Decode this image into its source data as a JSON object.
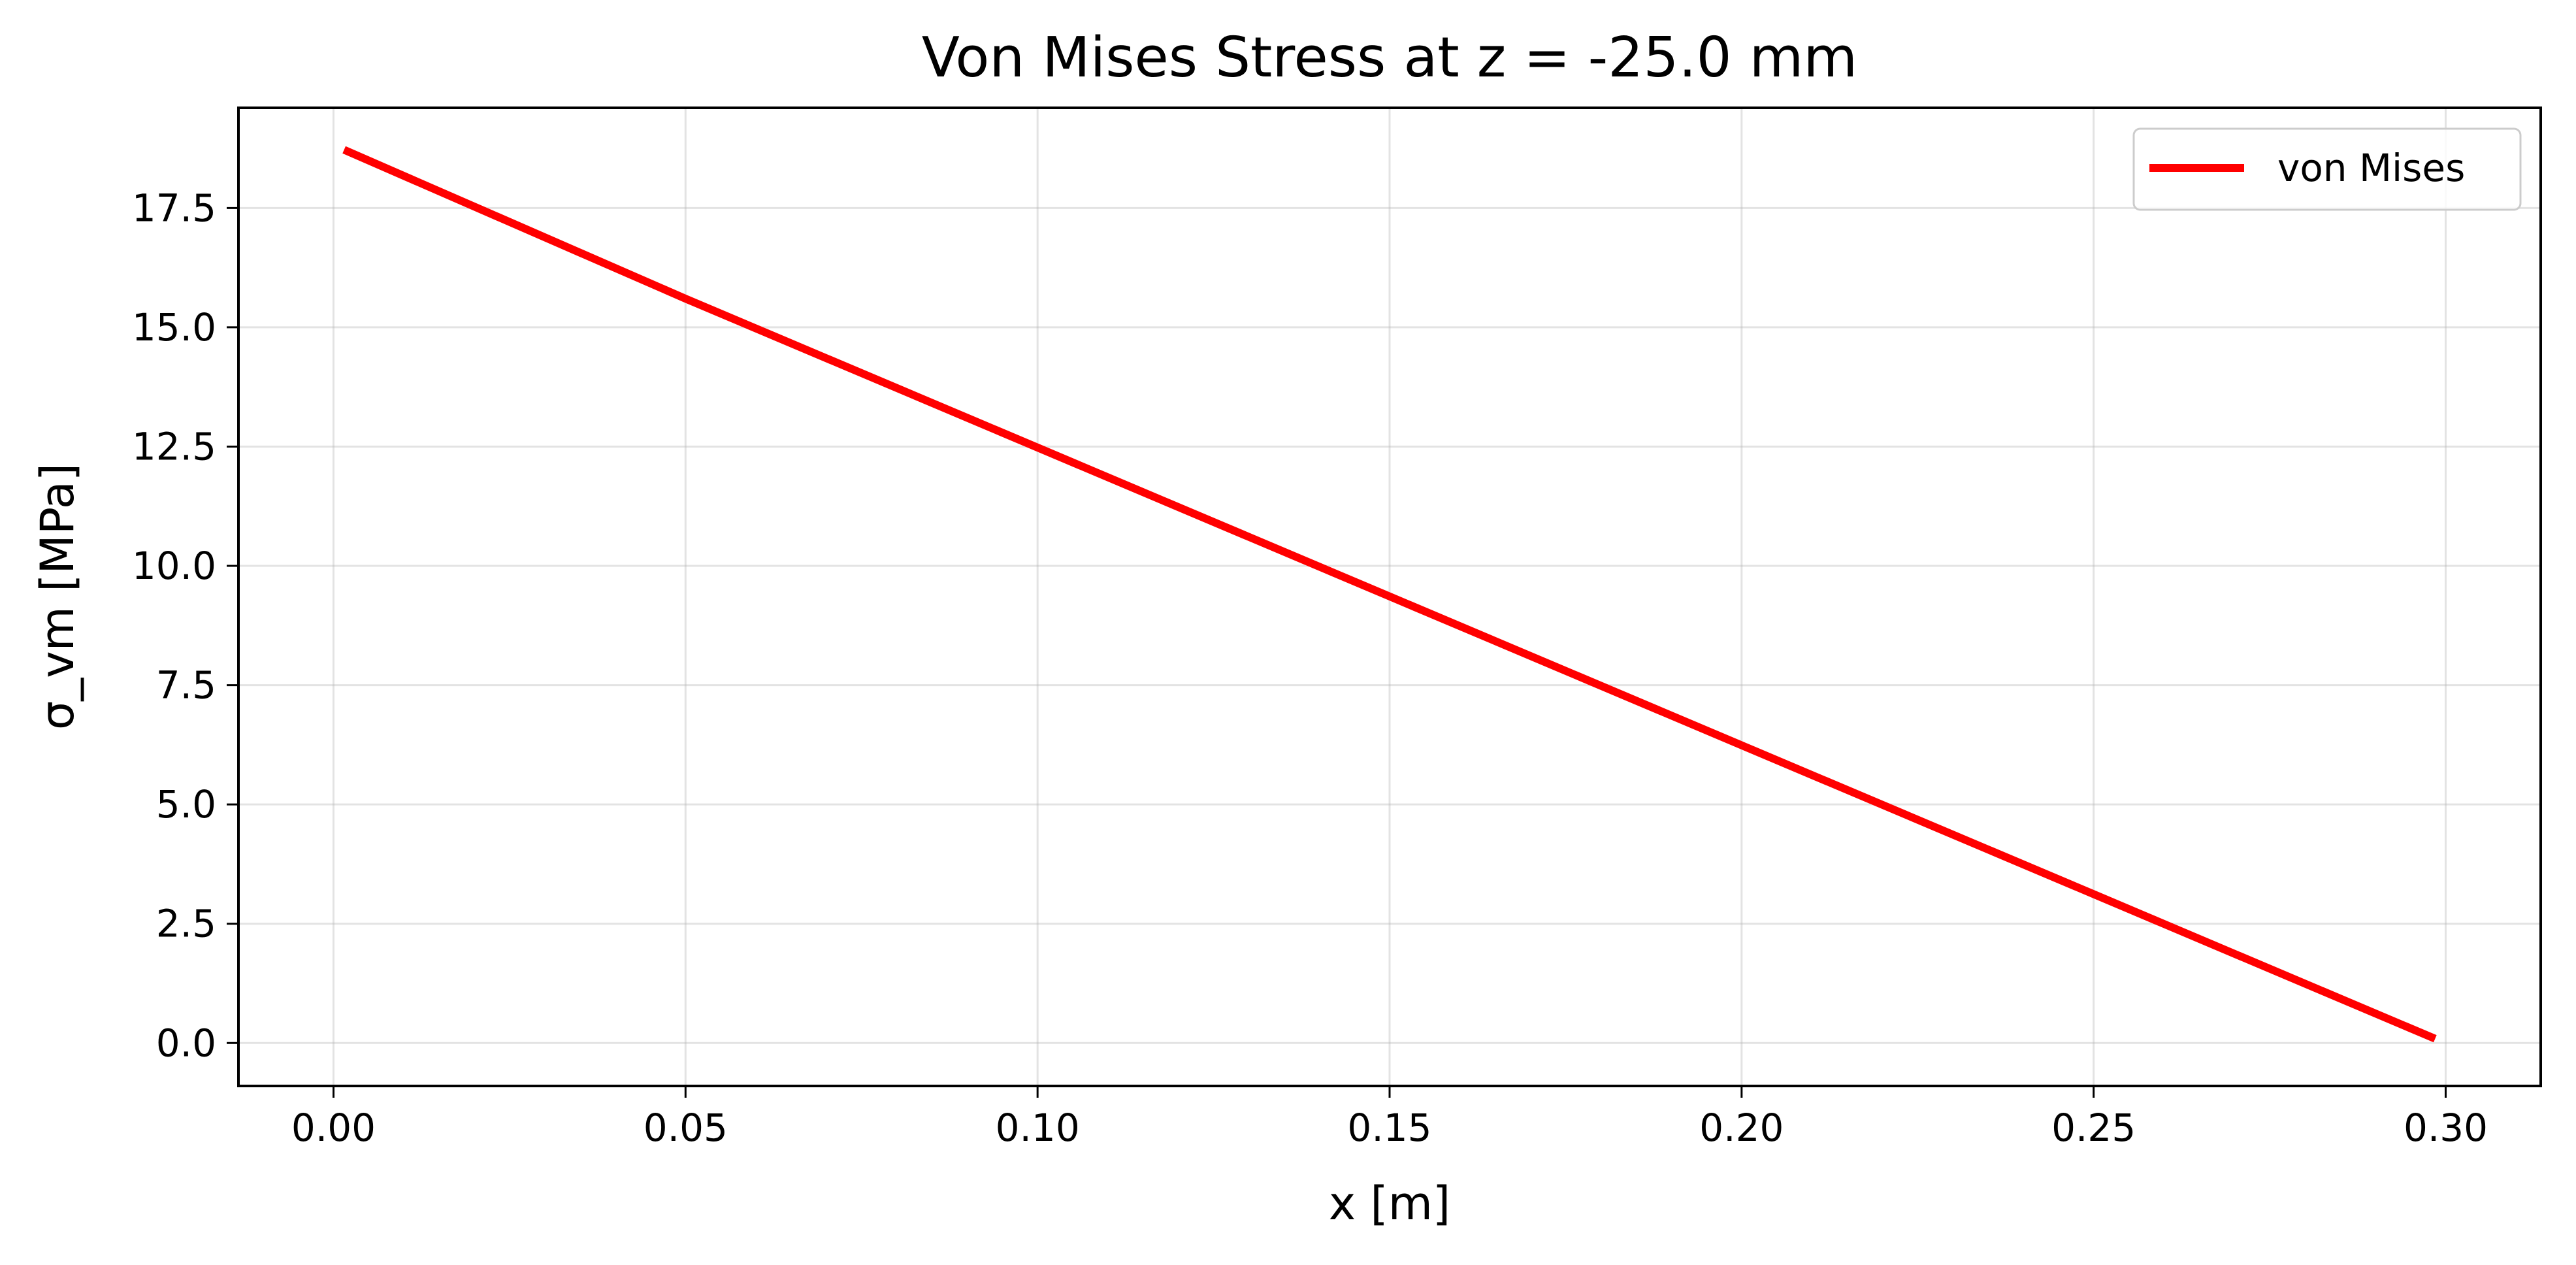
{
  "chart_data": {
    "type": "line",
    "title": "Von Mises Stress at z = -25.0 mm",
    "xlabel": "x [m]",
    "ylabel": "σ_vm [MPa]",
    "xlim": [
      -0.0135,
      0.3135
    ],
    "ylim": [
      -0.9,
      19.6
    ],
    "xticks": [
      0.0,
      0.05,
      0.1,
      0.15,
      0.2,
      0.25,
      0.3
    ],
    "xtick_labels": [
      "0.00",
      "0.05",
      "0.10",
      "0.15",
      "0.20",
      "0.25",
      "0.30"
    ],
    "yticks": [
      0.0,
      2.5,
      5.0,
      7.5,
      10.0,
      12.5,
      15.0,
      17.5
    ],
    "ytick_labels": [
      "0.0",
      "2.5",
      "5.0",
      "7.5",
      "10.0",
      "12.5",
      "15.0",
      "17.5"
    ],
    "grid": true,
    "legend_position": "top-right",
    "series": [
      {
        "name": "von Mises",
        "color": "#ff0000",
        "x": [
          0.0015,
          0.05,
          0.1,
          0.15,
          0.2,
          0.25,
          0.2985
        ],
        "y": [
          18.72,
          15.6,
          12.48,
          9.36,
          6.24,
          3.12,
          0.09
        ]
      }
    ]
  }
}
